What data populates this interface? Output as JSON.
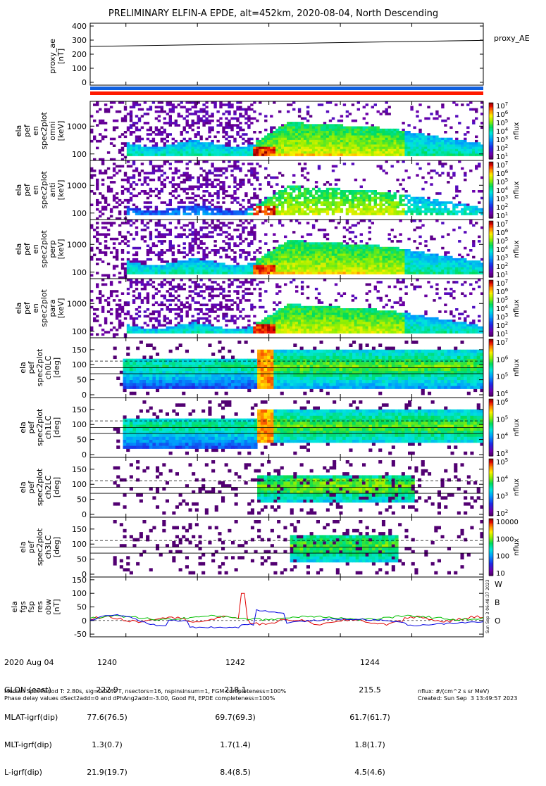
{
  "title": "PRELIMINARY ELFIN-A EPDE, alt=452km, 2020-08-04, North Descending",
  "chart_data": [
    {
      "type": "line",
      "ylabel": "proxy_ae\n[nT]",
      "yticks": [
        "400",
        "300",
        "200",
        "100",
        "0"
      ],
      "ylim": [
        -20,
        420
      ],
      "legend": "proxy_AE",
      "series": [
        {
          "name": "proxy_AE",
          "x": [
            "12:39.5",
            "12:45.0"
          ],
          "y": [
            255,
            298
          ]
        }
      ]
    },
    {
      "type": "heatmap",
      "ylabel": "ela\npef\nen\nspec2plot\nomni\n[keV]",
      "yticks": [
        "1000",
        "100"
      ],
      "colorbar": {
        "label": "nflux",
        "ticks": [
          "10^7",
          "10^6",
          "10^5",
          "10^4",
          "10^3",
          "10^2",
          "10^1"
        ]
      },
      "xlim": [
        "12:39.5",
        "12:45.0"
      ]
    },
    {
      "type": "heatmap",
      "ylabel": "ela\npef\nen\nspec2plot\nanti\n[keV]",
      "yticks": [
        "1000",
        "100"
      ],
      "colorbar": {
        "label": "nflux",
        "ticks": [
          "10^7",
          "10^6",
          "10^5",
          "10^4",
          "10^3",
          "10^2",
          "10^1"
        ]
      }
    },
    {
      "type": "heatmap",
      "ylabel": "ela\npef\nen\nspec2plot\nperp\n[keV]",
      "yticks": [
        "1000",
        "100"
      ],
      "colorbar": {
        "label": "nflux",
        "ticks": [
          "10^7",
          "10^6",
          "10^5",
          "10^4",
          "10^3",
          "10^2",
          "10^1"
        ]
      }
    },
    {
      "type": "heatmap",
      "ylabel": "ela\npef\nen\nspec2plot\npara\n[keV]",
      "yticks": [
        "1000",
        "100"
      ],
      "colorbar": {
        "label": "nflux",
        "ticks": [
          "10^7",
          "10^6",
          "10^5",
          "10^4",
          "10^3",
          "10^2",
          "10^1"
        ]
      }
    },
    {
      "type": "heatmap",
      "ylabel": "ela\npef\nspec2plot\nch0LC\n[deg]",
      "yticks": [
        "150",
        "100",
        "50",
        "0"
      ],
      "colorbar": {
        "label": "nflux",
        "ticks": [
          "10^7",
          "10^6",
          "10^5",
          "10^4"
        ]
      }
    },
    {
      "type": "heatmap",
      "ylabel": "ela\npef\nspec2plot\nch1LC\n[deg]",
      "yticks": [
        "150",
        "100",
        "50",
        "0"
      ],
      "colorbar": {
        "label": "nflux",
        "ticks": [
          "10^6",
          "10^5",
          "10^4",
          "10^3"
        ]
      }
    },
    {
      "type": "heatmap",
      "ylabel": "ela\npef\nspec2plot\nch2LC\n[deg]",
      "yticks": [
        "150",
        "100",
        "50",
        "0"
      ],
      "colorbar": {
        "label": "nflux",
        "ticks": [
          "10^5",
          "10^4",
          "10^3",
          "10^2"
        ]
      }
    },
    {
      "type": "heatmap",
      "ylabel": "ela\npef\nspec2plot\nch3LC\n[deg]",
      "yticks": [
        "150",
        "100",
        "50",
        "0"
      ],
      "colorbar": {
        "label": "nflux",
        "ticks": [
          "10000",
          "1000",
          "100",
          "10"
        ]
      }
    },
    {
      "type": "line",
      "ylabel": "ela\nfgs\nfsp\nres\nobw\n[nT]",
      "yticks": [
        "150",
        "100",
        "50",
        "0",
        "-50"
      ],
      "ylim": [
        -60,
        160
      ],
      "legend": [
        "W",
        "B",
        "O"
      ],
      "legend_colors": [
        "#e00000",
        "#00c000",
        "#0000e0"
      ]
    }
  ],
  "colors": {
    "blue_bar": "#1060e0",
    "red_bar": "#ff1a00",
    "W": "#e00000",
    "B": "#00c000",
    "O": "#0000e0"
  },
  "eph": {
    "date": "2020 Aug 04",
    "times": [
      "1240",
      "1242",
      "1244"
    ],
    "rows": [
      {
        "label": "GLON (east)",
        "vals": [
          "222.9",
          "218.1",
          "215.5"
        ]
      },
      {
        "label": "MLAT-igrf(dip)",
        "vals": [
          "77.6(76.5)",
          "69.7(69.3)",
          "61.7(61.7)"
        ]
      },
      {
        "label": "MLT-igrf(dip)",
        "vals": [
          "1.3(0.7)",
          "1.7(1.4)",
          "1.8(1.7)"
        ]
      },
      {
        "label": "L-igrf(dip)",
        "vals": [
          "21.9(19.7)",
          "8.4(8.5)",
          "4.5(4.6)"
        ]
      }
    ]
  },
  "footer": {
    "line1": "Median Spin Period T: 2.80s, sig=0.00% T, nsectors=16, nspinsinsum=1, FGM completeness=100%",
    "line2": "Phase delay values dSect2add=0 and dPhAng2add=-3.00, Good Fit, EPDE completeness=100%",
    "right1": "nflux: #/(cm^2 s sr MeV)",
    "right2": "Created: Sun Sep  3 13:49:57 2023",
    "vertical": "Sun Sep  3 06:48:37 2023"
  }
}
